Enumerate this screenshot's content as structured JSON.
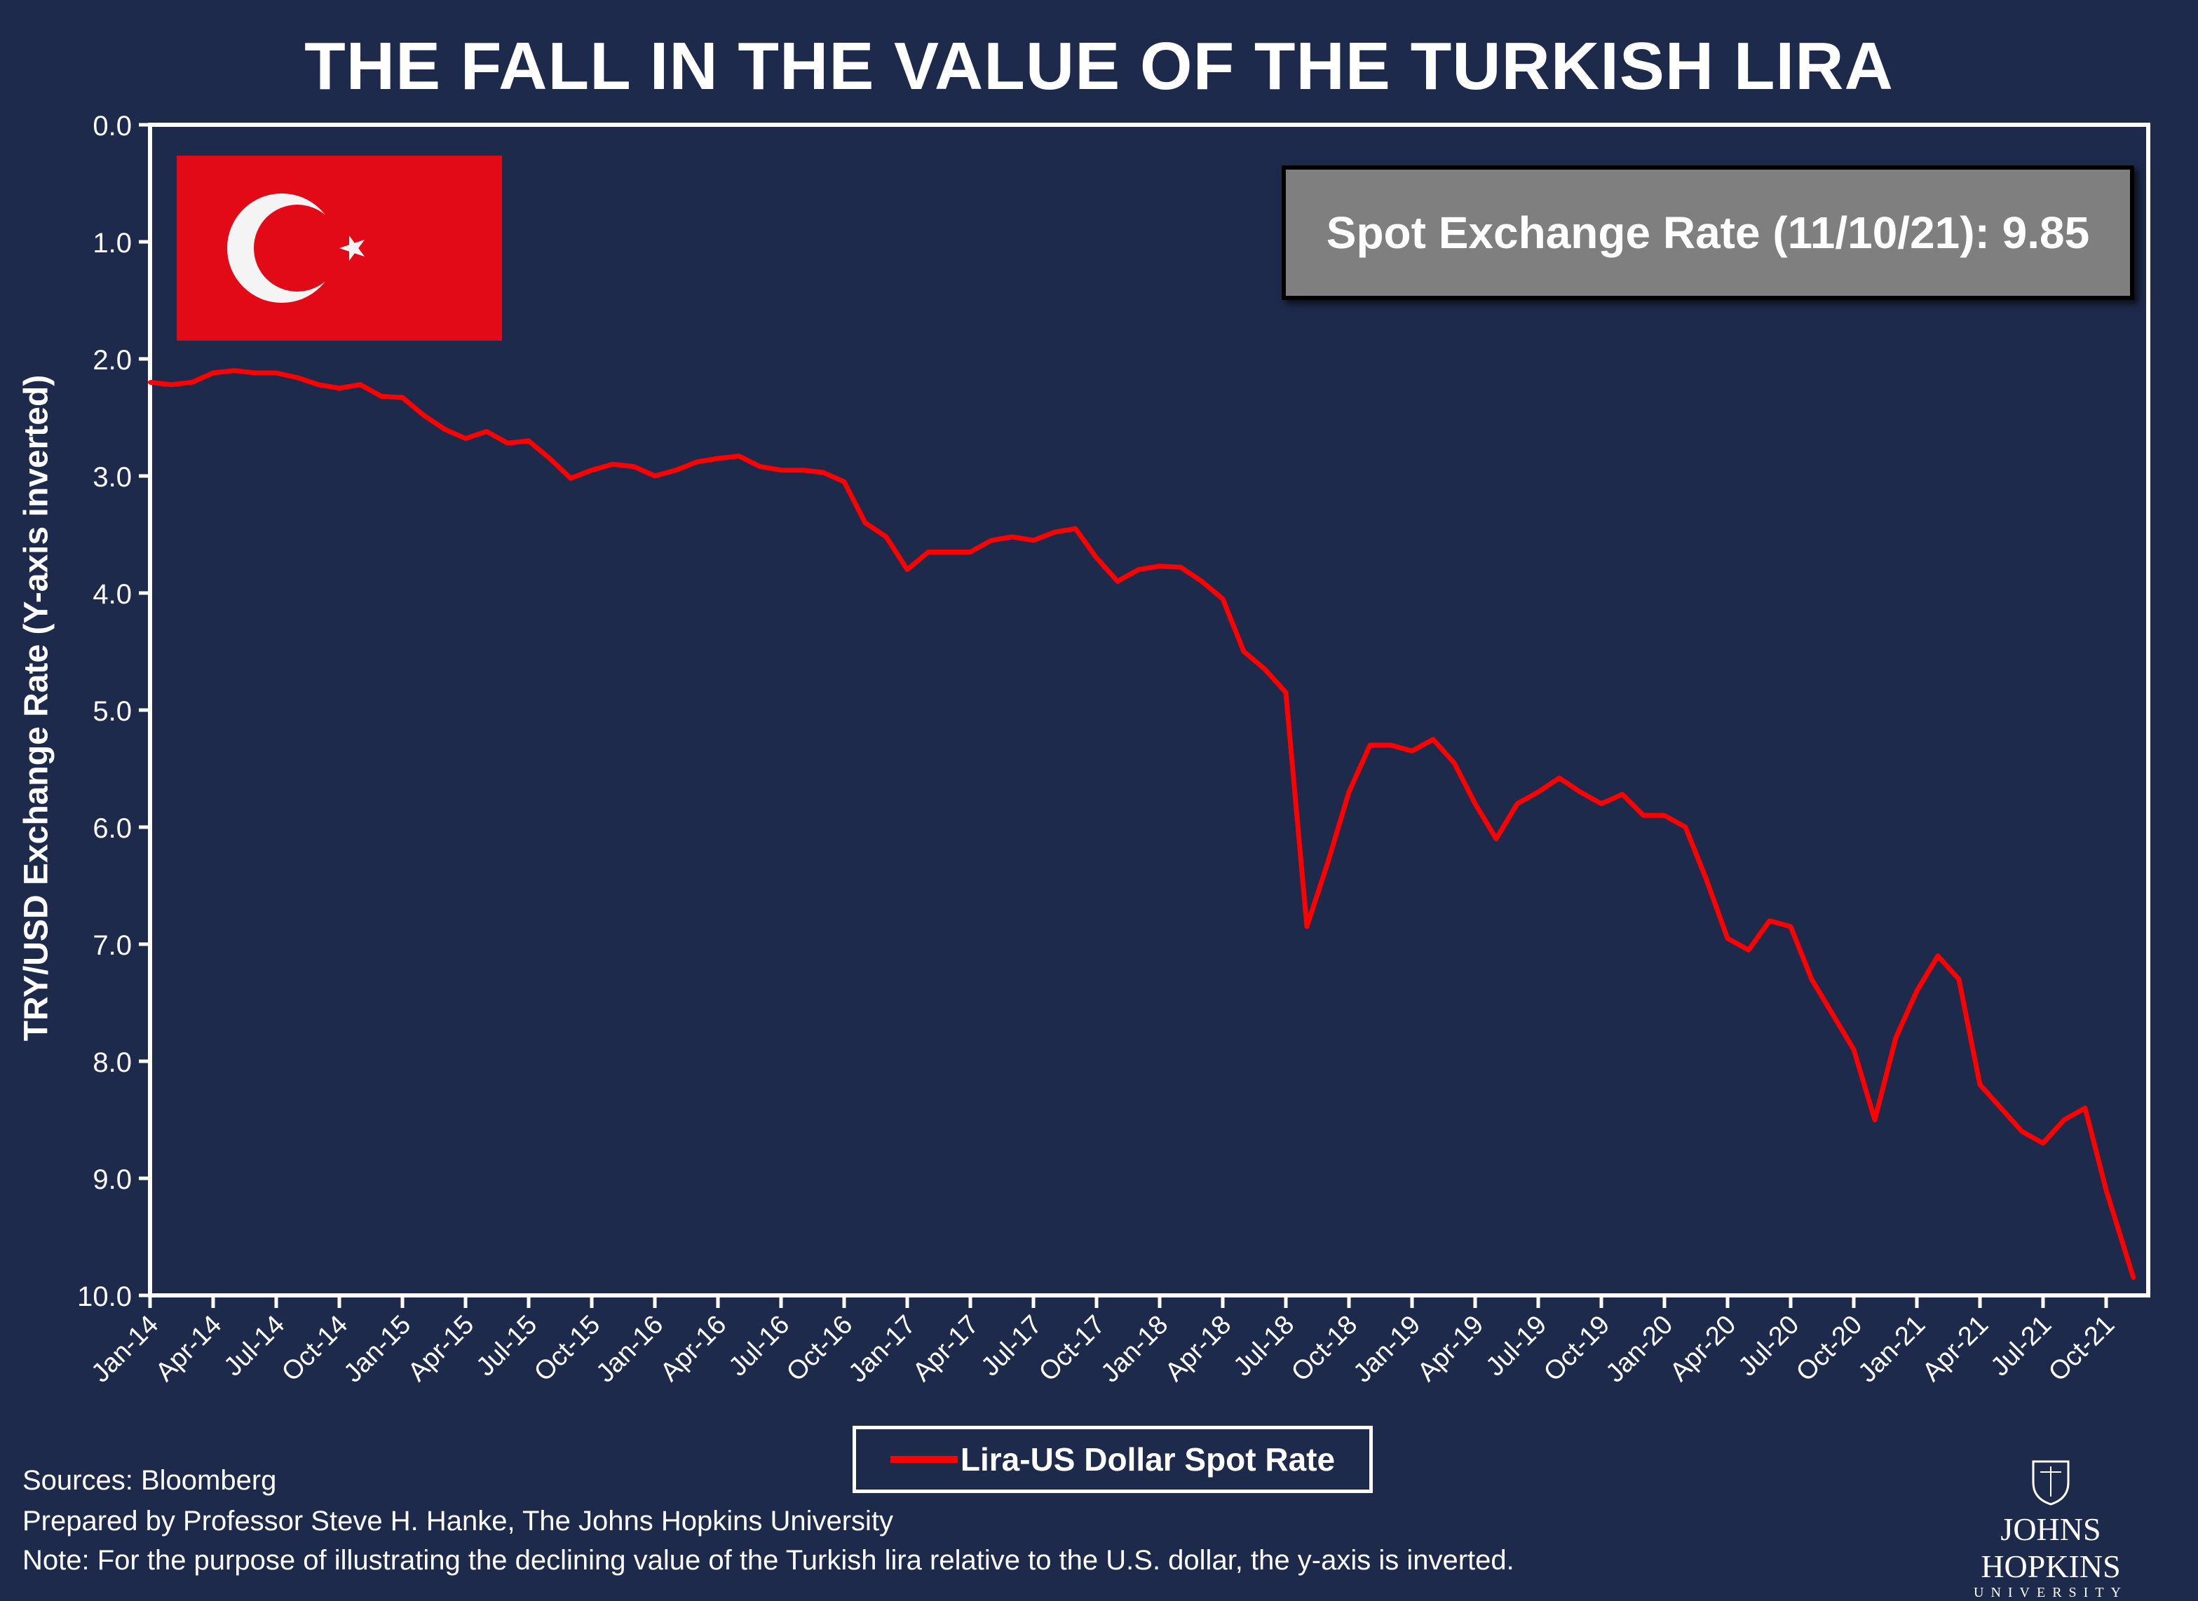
{
  "title": "THE FALL IN THE VALUE OF THE TURKISH LIRA",
  "info_box": "Spot Exchange Rate (11/10/21): 9.85",
  "flag_icon": "turkey-flag",
  "footer": {
    "sources": "Sources: Bloomberg",
    "prepared": "Prepared by Professor Steve H. Hanke, The Johns Hopkins University",
    "note": "Note: For the purpose of illustrating the declining value of the Turkish lira relative to the U.S. dollar, the y-axis is inverted.",
    "logo_name": "JOHNS HOPKINS",
    "logo_sub": "UNIVERSITY"
  },
  "chart_data": {
    "type": "line",
    "title": "THE FALL IN THE VALUE OF THE TURKISH LIRA",
    "ylabel": "TRY/USD Exchange Rate (Y-axis inverted)",
    "xlabel": "",
    "ylim": [
      0,
      10
    ],
    "y_inverted": true,
    "grid": false,
    "legend_position": "bottom",
    "line_color": "#ff0000",
    "y_ticks": [
      "0.0",
      "1.0",
      "2.0",
      "3.0",
      "4.0",
      "5.0",
      "6.0",
      "7.0",
      "8.0",
      "9.0",
      "10.0"
    ],
    "x_ticks": [
      "Jan-14",
      "Apr-14",
      "Jul-14",
      "Oct-14",
      "Jan-15",
      "Apr-15",
      "Jul-15",
      "Oct-15",
      "Jan-16",
      "Apr-16",
      "Jul-16",
      "Oct-16",
      "Jan-17",
      "Apr-17",
      "Jul-17",
      "Oct-17",
      "Jan-18",
      "Apr-18",
      "Jul-18",
      "Oct-18",
      "Jan-19",
      "Apr-19",
      "Jul-19",
      "Oct-19",
      "Jan-20",
      "Apr-20",
      "Jul-20",
      "Oct-20",
      "Jan-21",
      "Apr-21",
      "Jul-21",
      "Oct-21"
    ],
    "series": [
      {
        "name": "Lira-US Dollar Spot Rate",
        "x": [
          "2014-01",
          "2014-02",
          "2014-03",
          "2014-04",
          "2014-05",
          "2014-06",
          "2014-07",
          "2014-08",
          "2014-09",
          "2014-10",
          "2014-11",
          "2014-12",
          "2015-01",
          "2015-02",
          "2015-03",
          "2015-04",
          "2015-05",
          "2015-06",
          "2015-07",
          "2015-08",
          "2015-09",
          "2015-10",
          "2015-11",
          "2015-12",
          "2016-01",
          "2016-02",
          "2016-03",
          "2016-04",
          "2016-05",
          "2016-06",
          "2016-07",
          "2016-08",
          "2016-09",
          "2016-10",
          "2016-11",
          "2016-12",
          "2017-01",
          "2017-02",
          "2017-03",
          "2017-04",
          "2017-05",
          "2017-06",
          "2017-07",
          "2017-08",
          "2017-09",
          "2017-10",
          "2017-11",
          "2017-12",
          "2018-01",
          "2018-02",
          "2018-03",
          "2018-04",
          "2018-05",
          "2018-06",
          "2018-07",
          "2018-08",
          "2018-09",
          "2018-10",
          "2018-11",
          "2018-12",
          "2019-01",
          "2019-02",
          "2019-03",
          "2019-04",
          "2019-05",
          "2019-06",
          "2019-07",
          "2019-08",
          "2019-09",
          "2019-10",
          "2019-11",
          "2019-12",
          "2020-01",
          "2020-02",
          "2020-03",
          "2020-04",
          "2020-05",
          "2020-06",
          "2020-07",
          "2020-08",
          "2020-09",
          "2020-10",
          "2020-11",
          "2020-12",
          "2021-01",
          "2021-02",
          "2021-03",
          "2021-04",
          "2021-05",
          "2021-06",
          "2021-07",
          "2021-08",
          "2021-09",
          "2021-10",
          "2021-11-10"
        ],
        "values": [
          2.2,
          2.22,
          2.2,
          2.12,
          2.1,
          2.12,
          2.12,
          2.16,
          2.22,
          2.25,
          2.22,
          2.32,
          2.33,
          2.48,
          2.6,
          2.68,
          2.62,
          2.72,
          2.7,
          2.85,
          3.02,
          2.95,
          2.9,
          2.92,
          3.0,
          2.95,
          2.88,
          2.85,
          2.83,
          2.92,
          2.95,
          2.95,
          2.97,
          3.05,
          3.4,
          3.52,
          3.8,
          3.65,
          3.65,
          3.65,
          3.55,
          3.52,
          3.55,
          3.48,
          3.45,
          3.7,
          3.9,
          3.8,
          3.77,
          3.78,
          3.9,
          4.05,
          4.5,
          4.65,
          4.85,
          6.85,
          6.3,
          5.7,
          5.3,
          5.3,
          5.35,
          5.25,
          5.45,
          5.8,
          6.1,
          5.8,
          5.7,
          5.58,
          5.7,
          5.8,
          5.72,
          5.9,
          5.9,
          6.0,
          6.45,
          6.95,
          7.05,
          6.8,
          6.85,
          7.3,
          7.6,
          7.9,
          8.5,
          7.8,
          7.4,
          7.1,
          7.3,
          8.2,
          8.4,
          8.6,
          8.7,
          8.5,
          8.4,
          9.1,
          9.85
        ]
      }
    ]
  }
}
